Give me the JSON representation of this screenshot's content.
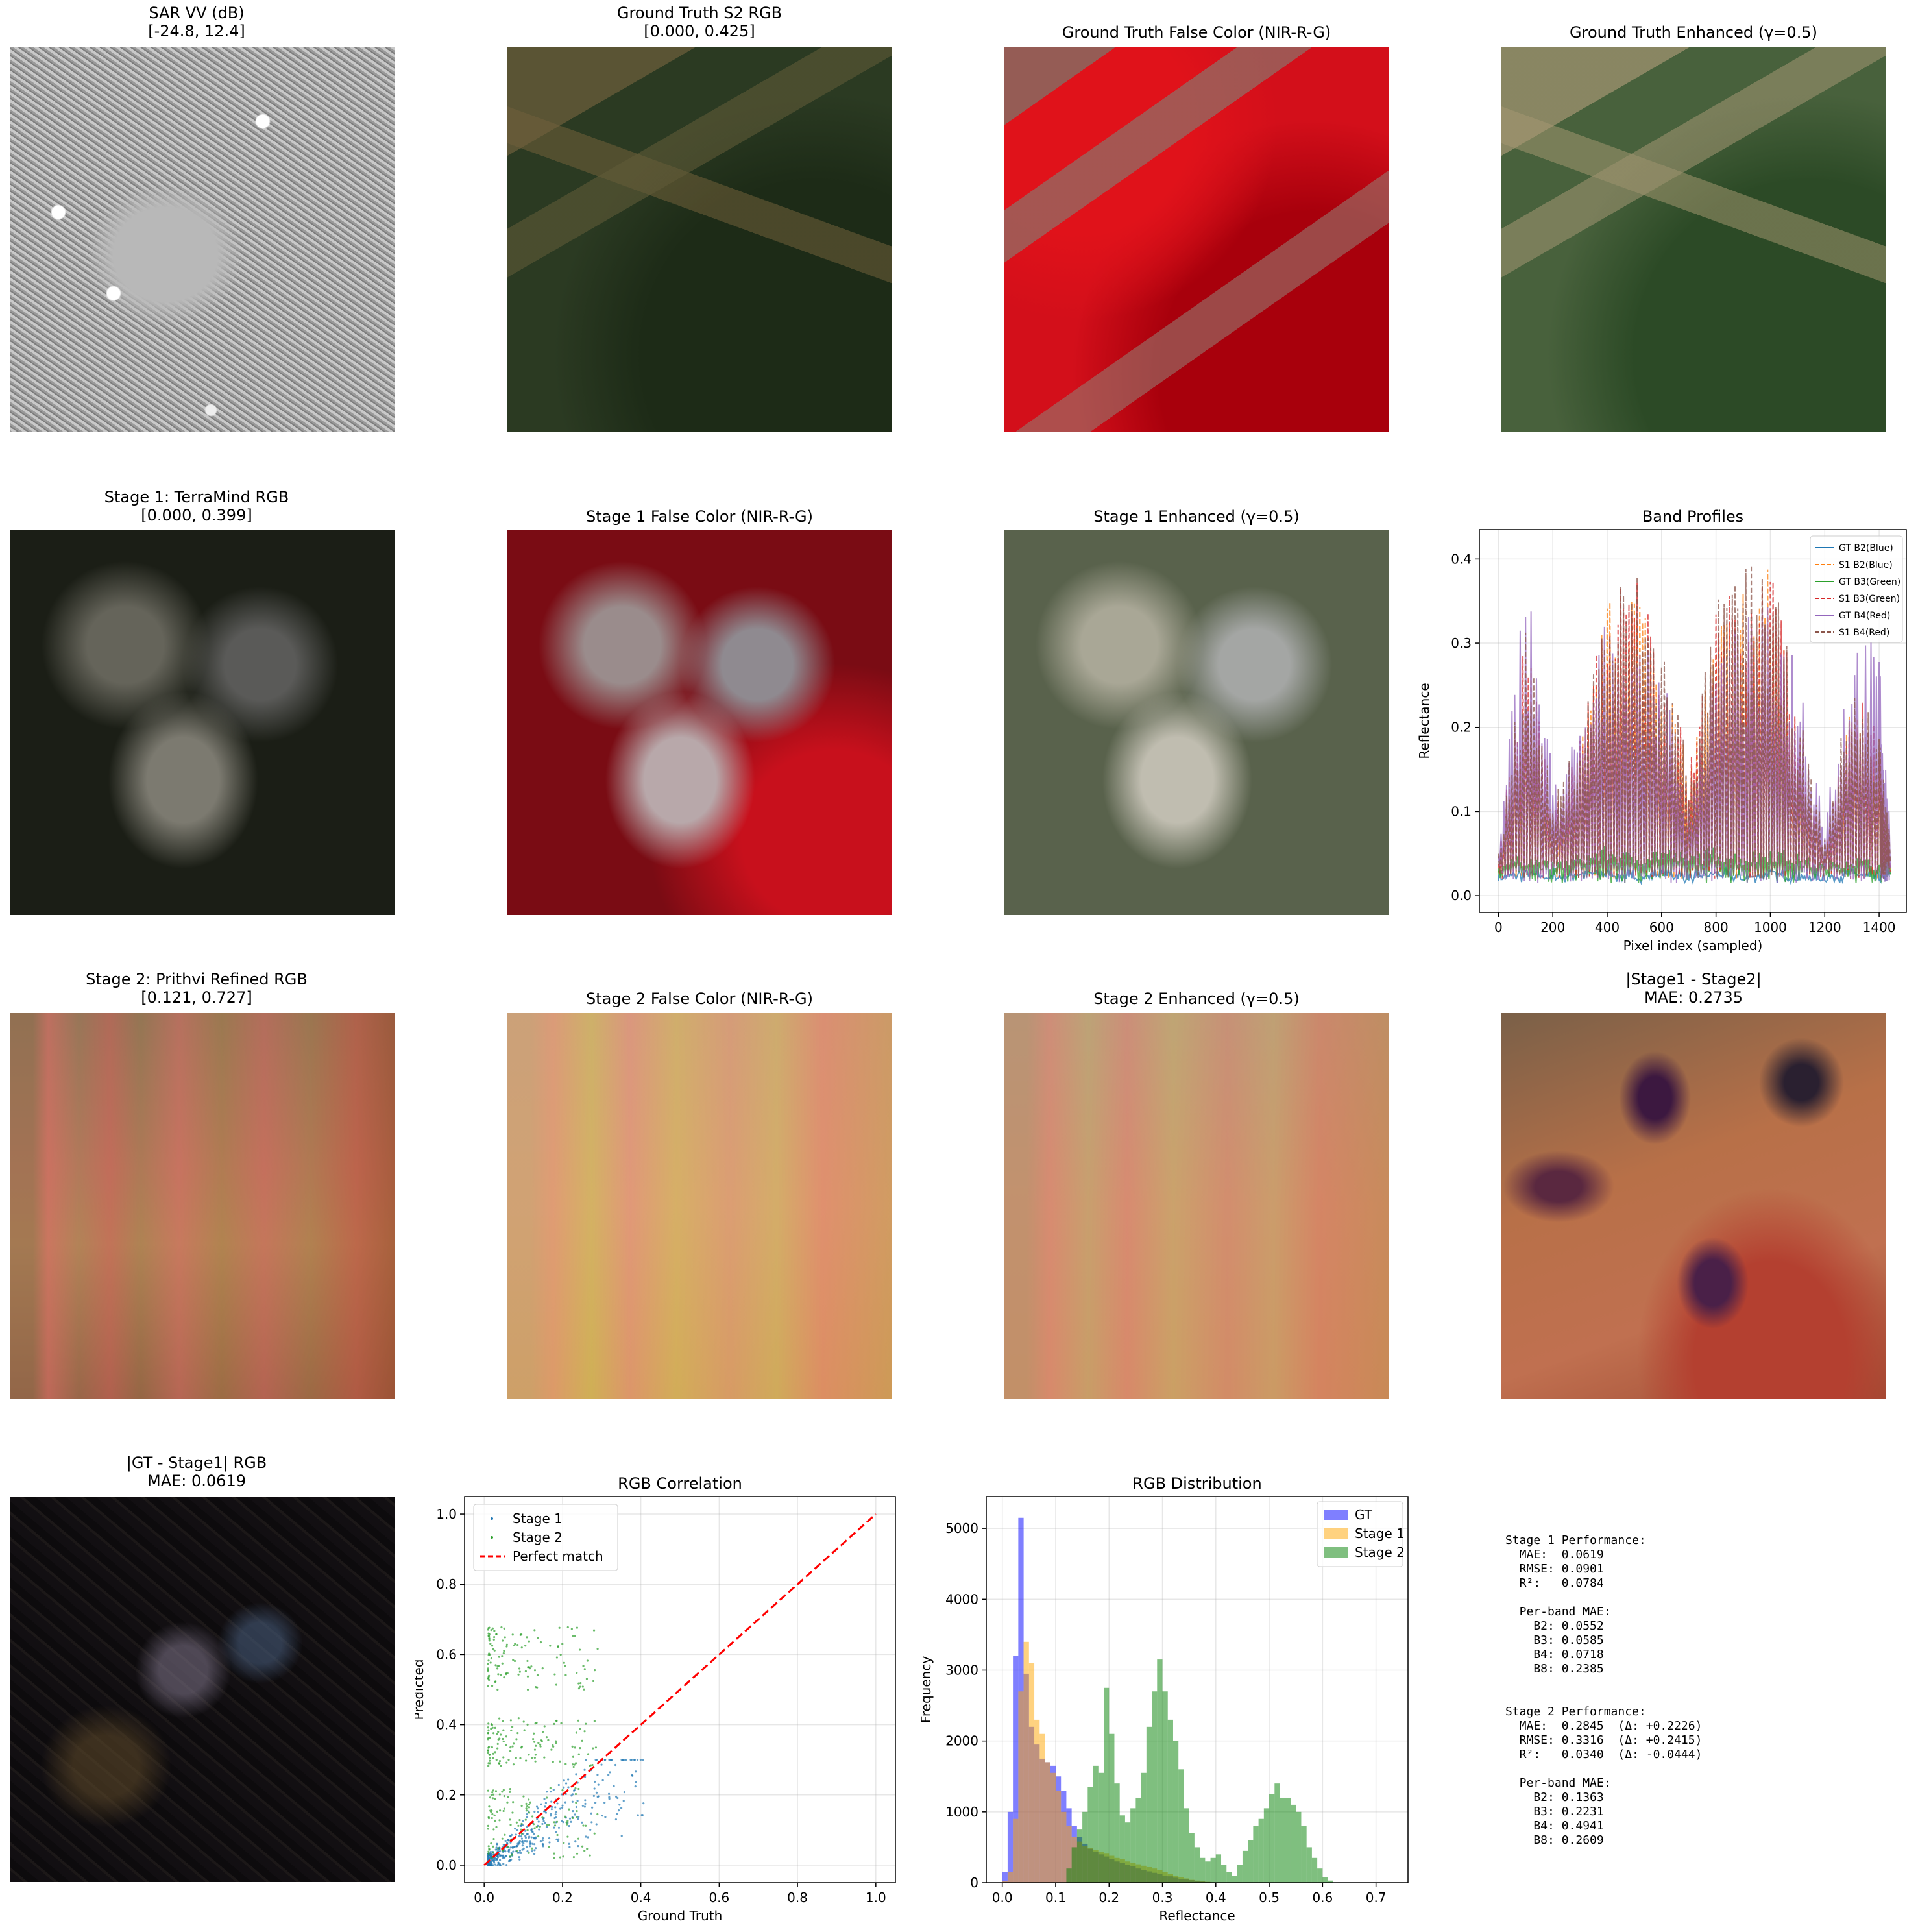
{
  "panels": {
    "sar": {
      "title": "SAR VV (dB)\n[-24.8, 12.4]"
    },
    "gt_rgb": {
      "title": "Ground Truth S2 RGB\n[0.000, 0.425]"
    },
    "gt_fc": {
      "title": "Ground Truth False Color (NIR-R-G)"
    },
    "gt_enh": {
      "title": "Ground Truth Enhanced (γ=0.5)"
    },
    "s1_rgb": {
      "title": "Stage 1: TerraMind RGB\n[0.000, 0.399]"
    },
    "s1_fc": {
      "title": "Stage 1 False Color (NIR-R-G)"
    },
    "s1_enh": {
      "title": "Stage 1 Enhanced (γ=0.5)"
    },
    "s2_rgb": {
      "title": "Stage 2: Prithvi Refined RGB\n[0.121, 0.727]"
    },
    "s2_fc": {
      "title": "Stage 2 False Color (NIR-R-G)"
    },
    "s2_enh": {
      "title": "Stage 2 Enhanced (γ=0.5)"
    },
    "diff12": {
      "title": "|Stage1 - Stage2|\nMAE: 0.2735"
    },
    "diffgt": {
      "title": "|GT - Stage1| RGB\nMAE: 0.0619"
    }
  },
  "stats_text": "Stage 1 Performance:\n  MAE:  0.0619\n  RMSE: 0.0901\n  R²:   0.0784\n\n  Per-band MAE:\n    B2: 0.0552\n    B3: 0.0585\n    B4: 0.0718\n    B8: 0.2385\n\n\nStage 2 Performance:\n  MAE:  0.2845  (Δ: +0.2226)\n  RMSE: 0.3316  (Δ: +0.2415)\n  R²:   0.0340  (Δ: -0.0444)\n\n  Per-band MAE:\n    B2: 0.1363\n    B3: 0.2231\n    B4: 0.4941\n    B8: 0.2609",
  "chart_data": [
    {
      "type": "line",
      "title": "Band Profiles",
      "xlabel": "Pixel index (sampled)",
      "ylabel": "Reflectance",
      "xlim": [
        -70,
        1500
      ],
      "ylim": [
        -0.02,
        0.435
      ],
      "xticks": [
        0,
        200,
        400,
        600,
        800,
        1000,
        1200,
        1400
      ],
      "yticks": [
        0.0,
        0.1,
        0.2,
        0.3,
        0.4
      ],
      "grid": true,
      "legend_position": "upper right",
      "series": [
        {
          "name": "GT B2(Blue)",
          "color": "#1f77b4",
          "dash": "solid",
          "x": [
            0,
            100,
            200,
            300,
            400,
            500,
            600,
            700,
            800,
            900,
            1000,
            1100,
            1200,
            1300,
            1400,
            1440
          ],
          "y": [
            0.02,
            0.03,
            0.02,
            0.03,
            0.03,
            0.02,
            0.03,
            0.02,
            0.03,
            0.02,
            0.03,
            0.02,
            0.02,
            0.03,
            0.02,
            0.03
          ]
        },
        {
          "name": "S1 B2(Blue)",
          "color": "#ff7f0e",
          "dash": "dashed",
          "x": [
            0,
            100,
            200,
            300,
            400,
            500,
            600,
            700,
            800,
            900,
            1000,
            1100,
            1200,
            1300,
            1400,
            1440
          ],
          "y": [
            0.03,
            0.32,
            0.1,
            0.18,
            0.35,
            0.4,
            0.3,
            0.15,
            0.33,
            0.38,
            0.4,
            0.22,
            0.05,
            0.25,
            0.18,
            0.05
          ]
        },
        {
          "name": "GT B3(Green)",
          "color": "#2ca02c",
          "dash": "solid",
          "x": [
            0,
            100,
            200,
            300,
            400,
            500,
            600,
            700,
            800,
            900,
            1000,
            1100,
            1200,
            1300,
            1400,
            1440
          ],
          "y": [
            0.04,
            0.05,
            0.04,
            0.05,
            0.06,
            0.05,
            0.06,
            0.05,
            0.06,
            0.05,
            0.06,
            0.05,
            0.04,
            0.05,
            0.04,
            0.05
          ]
        },
        {
          "name": "S1 B3(Green)",
          "color": "#d62728",
          "dash": "dashed",
          "x": [
            0,
            100,
            200,
            300,
            400,
            500,
            600,
            700,
            800,
            900,
            1000,
            1100,
            1200,
            1300,
            1400,
            1440
          ],
          "y": [
            0.04,
            0.33,
            0.1,
            0.19,
            0.36,
            0.4,
            0.31,
            0.16,
            0.34,
            0.39,
            0.4,
            0.22,
            0.06,
            0.26,
            0.19,
            0.06
          ]
        },
        {
          "name": "GT B4(Red)",
          "color": "#9467bd",
          "dash": "solid",
          "x": [
            0,
            100,
            200,
            300,
            400,
            500,
            600,
            700,
            800,
            900,
            1000,
            1100,
            1200,
            1300,
            1400,
            1440
          ],
          "y": [
            0.05,
            0.41,
            0.15,
            0.2,
            0.34,
            0.3,
            0.28,
            0.12,
            0.3,
            0.33,
            0.35,
            0.3,
            0.1,
            0.32,
            0.3,
            0.08
          ]
        },
        {
          "name": "S1 B4(Red)",
          "color": "#8c564b",
          "dash": "dashed",
          "x": [
            0,
            100,
            200,
            300,
            400,
            500,
            600,
            700,
            800,
            900,
            1000,
            1100,
            1200,
            1300,
            1400,
            1440
          ],
          "y": [
            0.05,
            0.34,
            0.11,
            0.2,
            0.37,
            0.4,
            0.32,
            0.17,
            0.35,
            0.4,
            0.4,
            0.23,
            0.07,
            0.27,
            0.2,
            0.07
          ]
        }
      ]
    },
    {
      "type": "scatter",
      "title": "RGB Correlation",
      "xlabel": "Ground Truth",
      "ylabel": "Predicted",
      "xlim": [
        -0.05,
        1.05
      ],
      "ylim": [
        -0.05,
        1.05
      ],
      "xticks": [
        0.0,
        0.2,
        0.4,
        0.6,
        0.8,
        1.0
      ],
      "yticks": [
        0.0,
        0.2,
        0.4,
        0.6,
        0.8,
        1.0
      ],
      "grid": true,
      "legend_position": "upper left",
      "series": [
        {
          "name": "Stage 1",
          "color": "#1f77b4",
          "x_range": [
            0.01,
            0.42
          ],
          "y_range": [
            0.0,
            0.3
          ]
        },
        {
          "name": "Stage 2",
          "color": "#2ca02c",
          "x_range": [
            0.01,
            0.3
          ],
          "y_range": [
            0.1,
            0.7
          ]
        },
        {
          "name": "Perfect match",
          "color": "#ff0000",
          "dash": "dashed",
          "x": [
            0,
            1
          ],
          "y": [
            0,
            1
          ]
        }
      ]
    },
    {
      "type": "bar",
      "title": "RGB Distribution",
      "xlabel": "Reflectance",
      "ylabel": "Frequency",
      "xlim": [
        -0.03,
        0.76
      ],
      "ylim": [
        0,
        5450
      ],
      "xticks": [
        0.0,
        0.1,
        0.2,
        0.3,
        0.4,
        0.5,
        0.6,
        0.7
      ],
      "yticks": [
        0,
        1000,
        2000,
        3000,
        4000,
        5000
      ],
      "grid": true,
      "legend_position": "upper right",
      "series": [
        {
          "name": "GT",
          "color": "#0000ff",
          "alpha": 0.5,
          "bins": [
            0.0,
            0.01,
            0.02,
            0.03,
            0.04,
            0.05,
            0.06,
            0.07,
            0.08,
            0.09,
            0.1,
            0.11,
            0.12,
            0.13,
            0.14,
            0.15,
            0.16,
            0.17,
            0.18,
            0.19,
            0.2,
            0.21,
            0.22,
            0.23,
            0.24,
            0.25,
            0.26,
            0.27,
            0.28,
            0.29,
            0.3,
            0.31,
            0.32,
            0.33,
            0.34,
            0.35,
            0.36,
            0.37,
            0.38,
            0.39
          ],
          "values": [
            150,
            1000,
            3200,
            5150,
            2950,
            2200,
            1950,
            1750,
            1700,
            1650,
            1500,
            1300,
            1050,
            800,
            650,
            550,
            480,
            440,
            400,
            370,
            330,
            300,
            280,
            250,
            230,
            200,
            180,
            160,
            140,
            120,
            100,
            90,
            70,
            55,
            45,
            35,
            25,
            15,
            10,
            5
          ]
        },
        {
          "name": "Stage 1",
          "color": "#ffa500",
          "alpha": 0.5,
          "bins": [
            0.0,
            0.01,
            0.02,
            0.03,
            0.04,
            0.05,
            0.06,
            0.07,
            0.08,
            0.09,
            0.1,
            0.11,
            0.12,
            0.13,
            0.14,
            0.15,
            0.16,
            0.17,
            0.18,
            0.19,
            0.2,
            0.21,
            0.22,
            0.23,
            0.24,
            0.25,
            0.26,
            0.27,
            0.28,
            0.29,
            0.3,
            0.31,
            0.32,
            0.33,
            0.34,
            0.35,
            0.36,
            0.37,
            0.38,
            0.39
          ],
          "values": [
            20,
            150,
            900,
            2700,
            3400,
            3100,
            2300,
            2100,
            1700,
            1550,
            1300,
            1000,
            800,
            650,
            580,
            520,
            490,
            460,
            430,
            410,
            380,
            350,
            330,
            300,
            280,
            260,
            240,
            220,
            200,
            180,
            150,
            120,
            100,
            80,
            60,
            40,
            30,
            20,
            12,
            6
          ]
        },
        {
          "name": "Stage 2",
          "color": "#008000",
          "alpha": 0.5,
          "bins": [
            0.12,
            0.13,
            0.14,
            0.15,
            0.16,
            0.17,
            0.18,
            0.19,
            0.2,
            0.21,
            0.22,
            0.23,
            0.24,
            0.25,
            0.26,
            0.27,
            0.28,
            0.29,
            0.3,
            0.31,
            0.32,
            0.33,
            0.34,
            0.35,
            0.36,
            0.37,
            0.38,
            0.39,
            0.4,
            0.41,
            0.42,
            0.43,
            0.44,
            0.45,
            0.46,
            0.47,
            0.48,
            0.49,
            0.5,
            0.51,
            0.52,
            0.53,
            0.54,
            0.55,
            0.56,
            0.57,
            0.58,
            0.59,
            0.6,
            0.61,
            0.62,
            0.63,
            0.64,
            0.65,
            0.66,
            0.67,
            0.68,
            0.69,
            0.7,
            0.71
          ],
          "values": [
            200,
            500,
            750,
            1000,
            1350,
            1650,
            1550,
            2750,
            2100,
            1400,
            950,
            850,
            1050,
            1200,
            1550,
            2200,
            2700,
            3150,
            2700,
            2300,
            2000,
            1600,
            1050,
            700,
            500,
            350,
            300,
            350,
            400,
            250,
            150,
            100,
            250,
            450,
            600,
            800,
            900,
            1050,
            1250,
            1400,
            1200,
            1200,
            1100,
            1000,
            800,
            500,
            350,
            200,
            80,
            30,
            0,
            0,
            0,
            0,
            0,
            0,
            0,
            0,
            0,
            0
          ]
        }
      ]
    }
  ]
}
